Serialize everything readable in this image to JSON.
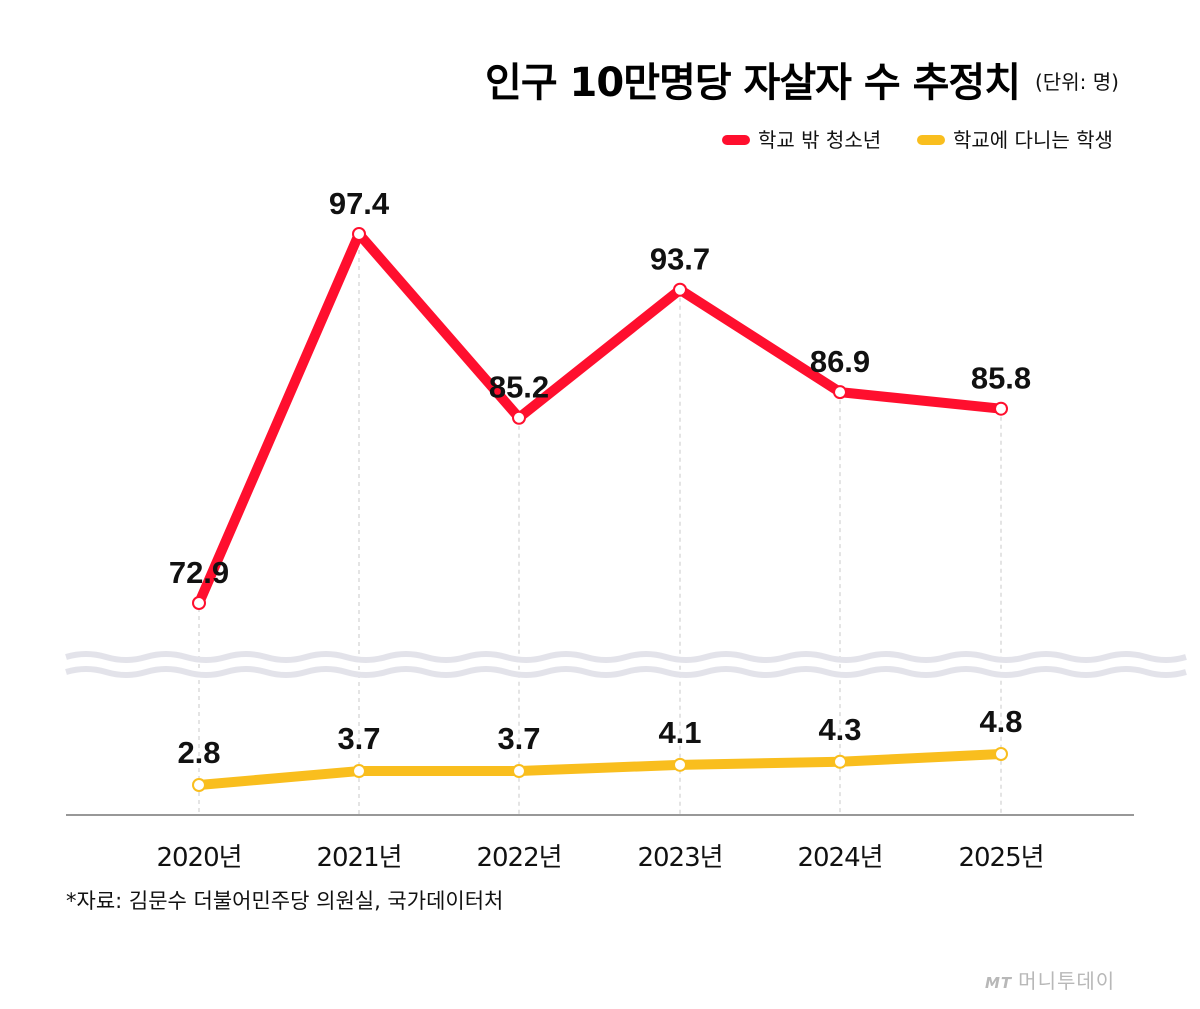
{
  "title": "인구 10만명당 자살자 수 추정치",
  "unit": "(단위: 명)",
  "colors": {
    "red": "#ff0f2e",
    "yellow": "#f9be1e",
    "axis": "#777777",
    "wave": "#e3e3ea"
  },
  "legend": [
    {
      "label": "학교 밖 청소년",
      "color": "#ff0f2e"
    },
    {
      "label": "학교에 다니는 학생",
      "color": "#f9be1e"
    }
  ],
  "source": "*자료: 김문수 더불어민주당 의원실, 국가데이터처",
  "watermark": {
    "mark": "MT",
    "text": "머니투데이"
  },
  "chart_data": {
    "type": "line",
    "categories": [
      "2020년",
      "2021년",
      "2022년",
      "2023년",
      "2024년",
      "2025년"
    ],
    "series": [
      {
        "name": "학교 밖 청소년",
        "values": [
          72.9,
          97.4,
          85.2,
          93.7,
          86.9,
          85.8
        ],
        "color": "#ff0f2e"
      },
      {
        "name": "학교에 다니는 학생",
        "values": [
          2.8,
          3.7,
          3.7,
          4.1,
          4.3,
          4.8
        ],
        "color": "#f9be1e"
      }
    ],
    "value_labels": [
      "72.9",
      "97.4",
      "85.2",
      "93.7",
      "86.9",
      "85.8",
      "2.8",
      "3.7",
      "3.7",
      "4.1",
      "4.3",
      "4.8"
    ],
    "axis_break": true,
    "grid": "vertical dashed drop lines",
    "legend_position": "top-right"
  }
}
